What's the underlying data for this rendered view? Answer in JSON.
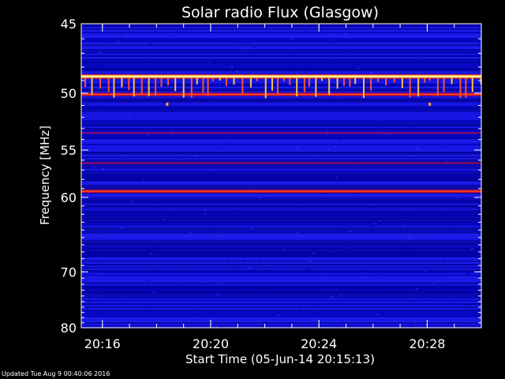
{
  "chart_data": {
    "type": "heatmap",
    "title": "Solar radio Flux (Glasgow)",
    "ylabel": "Frequency [MHz]",
    "xlabel": "Start Time (05-Jun-14 20:15:13)",
    "ylim": [
      45,
      80
    ],
    "yticks": [
      "45",
      "50",
      "55",
      "60",
      "70",
      "80"
    ],
    "ytick_values": [
      45,
      50,
      55,
      60,
      70,
      80
    ],
    "xticks": [
      "20:16",
      "20:20",
      "20:24",
      "20:28"
    ],
    "xtick_minutes": [
      16,
      20,
      24,
      28
    ],
    "xlim_minutes": [
      15.22,
      30.0
    ],
    "y_scale": "reciprocal",
    "grid": false,
    "colormap": "blue-red-yellow",
    "emission_bands_mhz": [
      {
        "freq": 48.7,
        "level": "high"
      },
      {
        "freq": 50.1,
        "level": "medium"
      },
      {
        "freq": 53.4,
        "level": "low"
      },
      {
        "freq": 56.3,
        "level": "low"
      },
      {
        "freq": 59.3,
        "level": "medium"
      }
    ]
  },
  "footer": {
    "updated": "Updated Tue Aug  9 00:40:06 2016"
  },
  "colors": {
    "background": "#000000",
    "base": "#1010d0",
    "hot": "#ffff80",
    "band": "#c01040"
  }
}
